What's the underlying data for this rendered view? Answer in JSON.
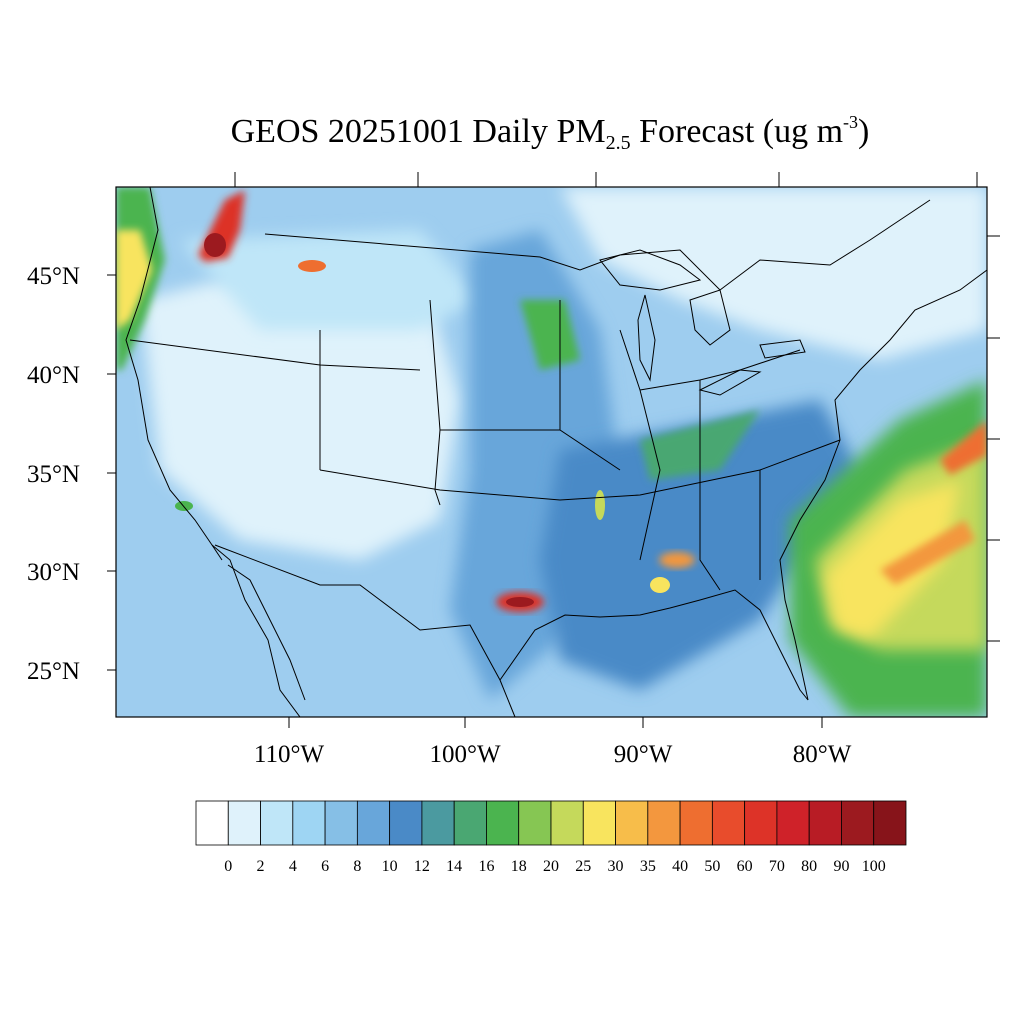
{
  "title": {
    "prefix": "GEOS 20251001 Daily PM",
    "subscript": "2.5",
    "middle": " Forecast (ug m",
    "superscript": "-3",
    "suffix": ")"
  },
  "axes": {
    "lat_labels": [
      "45°N",
      "40°N",
      "35°N",
      "30°N",
      "25°N"
    ],
    "lon_labels": [
      "110°W",
      "100°W",
      "90°W",
      "80°W"
    ]
  },
  "colorbar": {
    "labels": [
      "0",
      "2",
      "4",
      "6",
      "8",
      "10",
      "12",
      "14",
      "16",
      "18",
      "20",
      "25",
      "30",
      "35",
      "40",
      "50",
      "60",
      "70",
      "80",
      "90",
      "100"
    ],
    "colors": [
      "#ffffff",
      "#dff2fb",
      "#bfe6f8",
      "#9ed5f3",
      "#86bfe6",
      "#68a6da",
      "#4a8ac7",
      "#4b9aa0",
      "#4aa772",
      "#4bb44f",
      "#86c653",
      "#c5d95b",
      "#f8e45e",
      "#f7bd4a",
      "#f3973e",
      "#ee6e30",
      "#e84c2c",
      "#dd3328",
      "#cf2229",
      "#b81c25",
      "#9c1a1f",
      "#87141a"
    ]
  },
  "map": {
    "background": "#9ecdef",
    "region_colors": {
      "very_low": "#dff2fb",
      "low": "#bfe6f8",
      "moderate_low": "#9ed5f3",
      "moderate": "#86bfe6",
      "elevated": "#68a6da",
      "high_blue": "#4a8ac7",
      "green": "#4bb44f",
      "yellow": "#f8e45e",
      "orange": "#f3973e",
      "red": "#dd3328",
      "dark_red": "#9c1a1f"
    }
  }
}
